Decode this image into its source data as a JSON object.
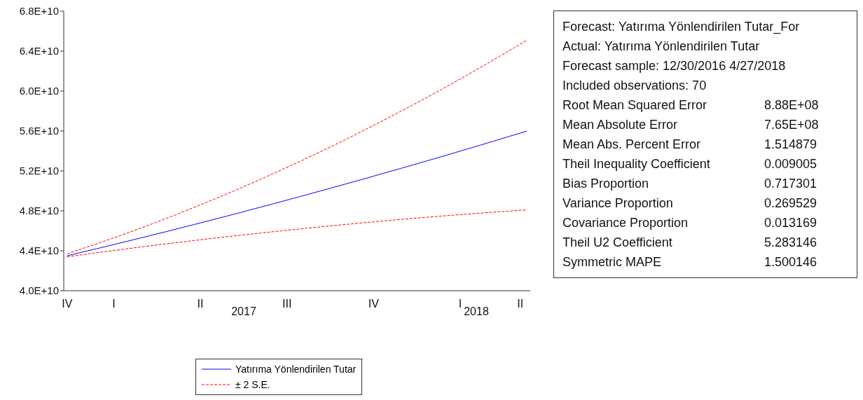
{
  "chart_data": [
    {
      "type": "line",
      "categories": [
        "IV",
        null,
        null,
        null,
        null,
        null,
        null,
        "I",
        null,
        null,
        null,
        null,
        null,
        null,
        null,
        null,
        null,
        null,
        null,
        null,
        "II",
        null,
        null,
        null,
        null,
        null,
        null,
        null,
        null,
        null,
        null,
        null,
        null,
        "III",
        null,
        null,
        null,
        null,
        null,
        null,
        null,
        null,
        null,
        null,
        null,
        null,
        "IV",
        null,
        null,
        null,
        null,
        null,
        null,
        null,
        null,
        null,
        null,
        null,
        null,
        "I",
        null,
        null,
        null,
        null,
        null,
        null,
        null,
        null,
        "II",
        null
      ],
      "series": [
        {
          "name": "Yatırıma Yönlendirilen Tutar",
          "color": "#0000ff",
          "line_style": "solid",
          "values": [
            43500000000.0,
            43660000000.0,
            43820000000.0,
            43980000000.0,
            44140000000.0,
            44300000000.0,
            44460000000.0,
            44620000000.0,
            44790000000.0,
            44950000000.0,
            45110000000.0,
            45280000000.0,
            45440000000.0,
            45610000000.0,
            45780000000.0,
            45940000000.0,
            46110000000.0,
            46280000000.0,
            46450000000.0,
            46620000000.0,
            46790000000.0,
            46970000000.0,
            47140000000.0,
            47310000000.0,
            47480000000.0,
            47660000000.0,
            47830000000.0,
            48010000000.0,
            48190000000.0,
            48360000000.0,
            48540000000.0,
            48720000000.0,
            48900000000.0,
            49080000000.0,
            49260000000.0,
            49440000000.0,
            49620000000.0,
            49810000000.0,
            49990000000.0,
            50170000000.0,
            50360000000.0,
            50540000000.0,
            50730000000.0,
            50910000000.0,
            51100000000.0,
            51290000000.0,
            51480000000.0,
            51670000000.0,
            51860000000.0,
            52050000000.0,
            52240000000.0,
            52430000000.0,
            52620000000.0,
            52820000000.0,
            53010000000.0,
            53200000000.0,
            53400000000.0,
            53590000000.0,
            53790000000.0,
            53990000000.0,
            54190000000.0,
            54380000000.0,
            54580000000.0,
            54780000000.0,
            54980000000.0,
            55190000000.0,
            55390000000.0,
            55590000000.0,
            55790000000.0,
            56000000000.0
          ]
        },
        {
          "name": "± 2 S.E.",
          "color": "#ff0000",
          "line_style": "dashed",
          "values": [
            43700000000.0,
            43920000000.0,
            44140000000.0,
            44370000000.0,
            44590000000.0,
            44830000000.0,
            45060000000.0,
            45290000000.0,
            45530000000.0,
            45770000000.0,
            46020000000.0,
            46260000000.0,
            46510000000.0,
            46760000000.0,
            47020000000.0,
            47280000000.0,
            47530000000.0,
            47800000000.0,
            48060000000.0,
            48330000000.0,
            48600000000.0,
            48870000000.0,
            49150000000.0,
            49430000000.0,
            49710000000.0,
            49990000000.0,
            50280000000.0,
            50570000000.0,
            50860000000.0,
            51150000000.0,
            51450000000.0,
            51750000000.0,
            52050000000.0,
            52360000000.0,
            52660000000.0,
            52970000000.0,
            53290000000.0,
            53600000000.0,
            53920000000.0,
            54240000000.0,
            54560000000.0,
            54890000000.0,
            55220000000.0,
            55550000000.0,
            55880000000.0,
            56220000000.0,
            56560000000.0,
            56900000000.0,
            57250000000.0,
            57600000000.0,
            57950000000.0,
            58300000000.0,
            58650000000.0,
            59010000000.0,
            59370000000.0,
            59740000000.0,
            60100000000.0,
            60470000000.0,
            60840000000.0,
            61220000000.0,
            61590000000.0,
            61970000000.0,
            62350000000.0,
            62740000000.0,
            63130000000.0,
            63520000000.0,
            63910000000.0,
            64300000000.0,
            64700000000.0,
            65100000000.0
          ]
        },
        {
          "color": "#ff0000",
          "line_style": "dashed",
          "values": [
            43400000000.0,
            43490000000.0,
            43580000000.0,
            43670000000.0,
            43760000000.0,
            43850000000.0,
            43940000000.0,
            44030000000.0,
            44110000000.0,
            44200000000.0,
            44290000000.0,
            44370000000.0,
            44450000000.0,
            44540000000.0,
            44620000000.0,
            44700000000.0,
            44780000000.0,
            44860000000.0,
            44940000000.0,
            45020000000.0,
            45100000000.0,
            45180000000.0,
            45260000000.0,
            45330000000.0,
            45410000000.0,
            45480000000.0,
            45560000000.0,
            45630000000.0,
            45700000000.0,
            45770000000.0,
            45850000000.0,
            45920000000.0,
            45990000000.0,
            46060000000.0,
            46130000000.0,
            46190000000.0,
            46260000000.0,
            46330000000.0,
            46390000000.0,
            46460000000.0,
            46520000000.0,
            46590000000.0,
            46650000000.0,
            46710000000.0,
            46780000000.0,
            46840000000.0,
            46900000000.0,
            46960000000.0,
            47020000000.0,
            47080000000.0,
            47130000000.0,
            47190000000.0,
            47250000000.0,
            47300000000.0,
            47360000000.0,
            47410000000.0,
            47470000000.0,
            47520000000.0,
            47570000000.0,
            47620000000.0,
            47670000000.0,
            47720000000.0,
            47770000000.0,
            47820000000.0,
            47870000000.0,
            47920000000.0,
            47960000000.0,
            48010000000.0,
            48060000000.0,
            48100000000.0
          ]
        }
      ],
      "ylim": [
        40000000000,
        68000000000
      ],
      "yticks": [
        {
          "value": 40000000000,
          "label": "4.0E+10"
        },
        {
          "value": 44000000000,
          "label": "4.4E+10"
        },
        {
          "value": 48000000000,
          "label": "4.8E+10"
        },
        {
          "value": 52000000000,
          "label": "5.2E+10"
        },
        {
          "value": 56000000000,
          "label": "5.6E+10"
        },
        {
          "value": 60000000000,
          "label": "6.0E+10"
        },
        {
          "value": 64000000000,
          "label": "6.4E+10"
        },
        {
          "value": 68000000000,
          "label": "6.8E+10"
        }
      ],
      "annotations": [
        "2017",
        "2018"
      ],
      "grid": false,
      "legend": "bottom"
    },
    {
      "type": "other",
      "categories": [
        "Forecast: Yatırıma Yönlendirilen Tutar_For",
        "Actual: Yatırıma Yönlendirilen Tutar",
        "Forecast sample: 12/30/2016 4/27/2018",
        "Included observations: 70",
        "Root Mean Squared Error",
        "Mean Absolute Error",
        "Mean Abs. Percent Error",
        "Theil Inequality Coefficient",
        "Bias Proportion",
        "Variance Proportion",
        "Covariance Proportion",
        "Theil U2 Coefficient",
        "Symmetric MAPE"
      ],
      "value_labels": [
        null,
        null,
        null,
        null,
        "8.88E+08",
        "7.65E+08",
        "1.514879",
        "0.009005",
        "0.717301",
        "0.269529",
        "0.013169",
        "5.283146",
        "1.500146"
      ]
    }
  ]
}
